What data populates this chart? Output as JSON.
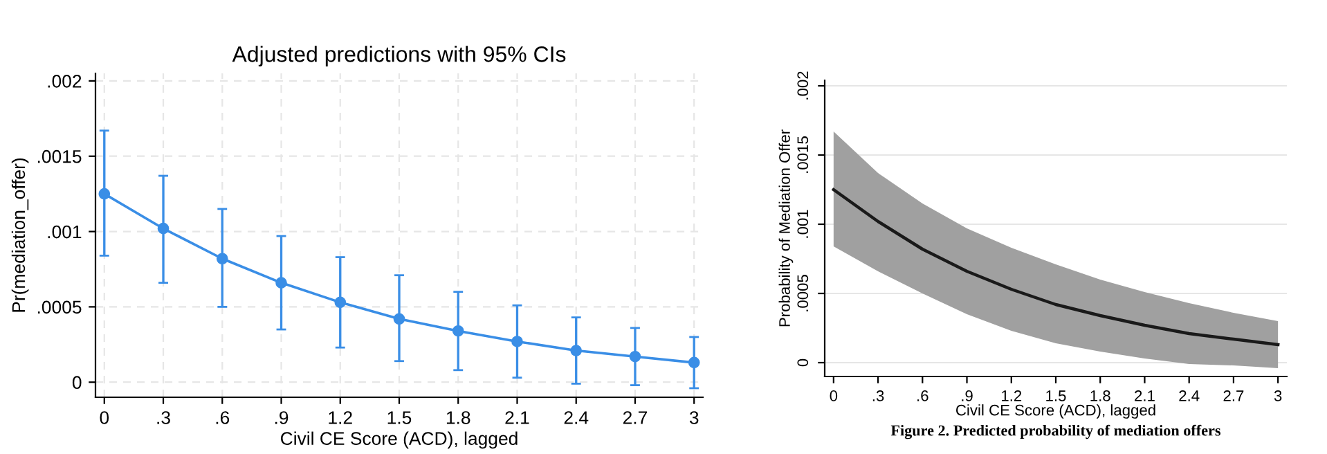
{
  "chart_data": [
    {
      "type": "line",
      "title": "Adjusted predictions with 95% CIs",
      "xlabel": "Civil CE Score (ACD), lagged",
      "ylabel": "Pr(mediation_offer)",
      "x": [
        0,
        0.3,
        0.6,
        0.9,
        1.2,
        1.5,
        1.8,
        2.1,
        2.4,
        2.7,
        3
      ],
      "series": [
        {
          "color": "#3a8ee6",
          "values": [
            0.00125,
            0.00102,
            0.00082,
            0.00066,
            0.00053,
            0.00042,
            0.00034,
            0.00027,
            0.00021,
            0.00017,
            0.00013
          ],
          "errors": [
            [
              0.00084,
              0.00167
            ],
            [
              0.00066,
              0.00137
            ],
            [
              0.0005,
              0.00115
            ],
            [
              0.00035,
              0.00097
            ],
            [
              0.00023,
              0.00083
            ],
            [
              0.00014,
              0.00071
            ],
            [
              8e-05,
              0.0006
            ],
            [
              3e-05,
              0.00051
            ],
            [
              -1e-05,
              0.00043
            ],
            [
              -2e-05,
              0.00036
            ],
            [
              -4e-05,
              0.0003
            ]
          ]
        }
      ],
      "marker": "circle",
      "line_style": "solid",
      "grid": true,
      "xlim": [
        -0.045,
        3.045
      ],
      "ylim": [
        -0.0001,
        0.00205
      ],
      "xticks": [
        0,
        {
          "value": 0.3,
          "label": ".3"
        },
        {
          "value": 0.6,
          "label": ".6"
        },
        {
          "value": 0.9,
          "label": ".9"
        },
        1.2,
        1.5,
        1.8,
        2.1,
        2.4,
        2.7,
        3
      ],
      "yticks": [
        0,
        {
          "value": 0.0005,
          "label": ".0005"
        },
        {
          "value": 0.001,
          "label": ".001"
        },
        {
          "value": 0.0015,
          "label": ".0015"
        },
        {
          "value": 0.002,
          "label": ".002"
        }
      ]
    },
    {
      "type": "line",
      "xlabel": "Civil CE Score (ACD), lagged",
      "ylabel": "Probability of Mediation Offer",
      "annotations": [
        "Figure 2. Predicted probability of mediation offers"
      ],
      "x": [
        0,
        0.3,
        0.6,
        0.9,
        1.2,
        1.5,
        1.8,
        2.1,
        2.4,
        2.7,
        3
      ],
      "series": [
        {
          "color": "#1a1a1a",
          "values": [
            0.00125,
            0.00102,
            0.00082,
            0.00066,
            0.00053,
            0.00042,
            0.00034,
            0.00027,
            0.00021,
            0.00017,
            0.00013
          ],
          "lower": [
            0.00084,
            0.00066,
            0.0005,
            0.00035,
            0.00023,
            0.00014,
            8e-05,
            3e-05,
            -1e-05,
            -2e-05,
            -4e-05
          ],
          "upper": [
            0.00167,
            0.00137,
            0.00115,
            0.00097,
            0.00083,
            0.00071,
            0.0006,
            0.00051,
            0.00043,
            0.00036,
            0.0003
          ]
        }
      ],
      "line_style": "solid",
      "grid": "y",
      "xlim": [
        -0.06,
        3.06
      ],
      "ylim": [
        -0.0001,
        0.00204
      ],
      "xticks": [
        0,
        {
          "value": 0.3,
          "label": ".3"
        },
        {
          "value": 0.6,
          "label": ".6"
        },
        {
          "value": 0.9,
          "label": ".9"
        },
        1.2,
        1.5,
        1.8,
        2.1,
        2.4,
        2.7,
        3
      ],
      "yticks": [
        0,
        {
          "value": 0.0005,
          "label": ".0005"
        },
        {
          "value": 0.001,
          "label": ".001"
        },
        {
          "value": 0.0015,
          "label": ".0015"
        },
        {
          "value": 0.002,
          "label": ".002"
        }
      ]
    }
  ]
}
